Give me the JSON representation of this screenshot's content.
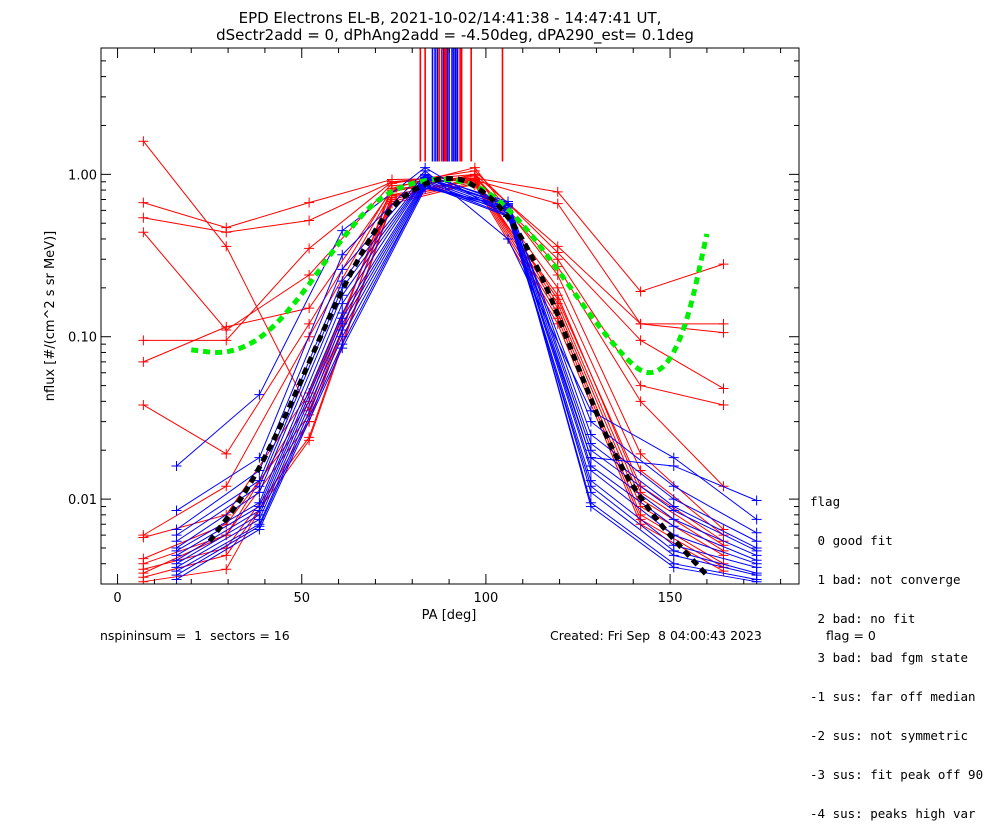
{
  "chart_data": {
    "type": "line",
    "title": "EPD Electrons EL-B, 2021-10-02/14:41:38 - 14:47:41 UT,",
    "subtitle": "dSectr2add = 0, dPhAng2add = -4.50deg, dPA290_est=   0.1deg",
    "xlabel": "PA [deg]",
    "ylabel": "nflux [#/(cm^2 s sr MeV)]",
    "xlim": [
      -4.5,
      185
    ],
    "ylim": [
      0.003,
      6.0
    ],
    "yscale": "log",
    "xticks": [
      0,
      50,
      100,
      150
    ],
    "xtick_labels": [
      "0",
      "50",
      "100",
      "150"
    ],
    "xminor_step": 10,
    "yticks": [
      0.01,
      0.1,
      1.0
    ],
    "ytick_labels": [
      "0.01",
      "0.10",
      "1.00"
    ],
    "grid": false,
    "red_pa": [
      7,
      29.5,
      52,
      74.5,
      97,
      119.5,
      142,
      164.5
    ],
    "blue_pa": [
      16,
      38.5,
      61,
      83.5,
      106,
      128.5,
      151,
      173.5
    ],
    "series": [
      {
        "name": "red-1",
        "color": "#ff0000",
        "pa": "red",
        "values": [
          1.6,
          0.36,
          0.035,
          0.85,
          0.95,
          0.3,
          0.05,
          0.038
        ]
      },
      {
        "name": "red-2",
        "color": "#ff0000",
        "pa": "red",
        "values": [
          0.67,
          0.47,
          0.67,
          0.93,
          0.95,
          0.78,
          0.19,
          0.28
        ]
      },
      {
        "name": "red-3",
        "color": "#ff0000",
        "pa": "red",
        "values": [
          0.54,
          0.44,
          0.52,
          0.9,
          0.92,
          0.66,
          0.12,
          0.12
        ]
      },
      {
        "name": "red-4",
        "color": "#ff0000",
        "pa": "red",
        "values": [
          0.44,
          0.11,
          0.24,
          0.88,
          1.05,
          0.33,
          0.095,
          0.048
        ]
      },
      {
        "name": "red-5",
        "color": "#ff0000",
        "pa": "red",
        "values": [
          0.095,
          0.095,
          0.35,
          0.9,
          1.0,
          0.36,
          0.12,
          0.106
        ]
      },
      {
        "name": "red-6",
        "color": "#ff0000",
        "pa": "red",
        "values": [
          0.07,
          0.115,
          0.15,
          0.8,
          0.98,
          0.27,
          0.04,
          0.012
        ]
      },
      {
        "name": "red-7",
        "color": "#ff0000",
        "pa": "red",
        "values": [
          0.038,
          0.019,
          0.12,
          0.82,
          1.1,
          0.24,
          0.019,
          0.0065
        ]
      },
      {
        "name": "red-8",
        "color": "#ff0000",
        "pa": "red",
        "values": [
          0.006,
          0.012,
          0.1,
          0.78,
          1.0,
          0.2,
          0.015,
          0.006
        ]
      },
      {
        "name": "red-9",
        "color": "#ff0000",
        "pa": "red",
        "values": [
          0.0058,
          0.008,
          0.045,
          0.72,
          0.95,
          0.17,
          0.012,
          0.0055
        ]
      },
      {
        "name": "red-10",
        "color": "#ff0000",
        "pa": "red",
        "values": [
          0.0043,
          0.007,
          0.033,
          0.7,
          0.93,
          0.16,
          0.01,
          0.0048
        ]
      },
      {
        "name": "red-11",
        "color": "#ff0000",
        "pa": "red",
        "values": [
          0.004,
          0.006,
          0.03,
          0.75,
          0.92,
          0.15,
          0.009,
          0.0045
        ]
      },
      {
        "name": "red-12",
        "color": "#ff0000",
        "pa": "red",
        "values": [
          0.0037,
          0.005,
          0.024,
          0.68,
          0.9,
          0.14,
          0.008,
          0.004
        ]
      },
      {
        "name": "red-13",
        "color": "#ff0000",
        "pa": "red",
        "values": [
          0.0033,
          0.0045,
          0.023,
          0.66,
          0.88,
          0.13,
          0.0075,
          0.0038
        ]
      },
      {
        "name": "red-14",
        "color": "#ff0000",
        "pa": "red",
        "values": [
          0.0031,
          0.0037,
          0.03,
          0.74,
          0.86,
          0.12,
          0.007,
          0.0036
        ]
      },
      {
        "name": "red-15",
        "color": "#ff0000",
        "pa": "red",
        "values": [
          0.0035,
          0.006,
          0.04,
          0.8,
          0.9,
          0.18,
          0.011,
          0.0052
        ]
      },
      {
        "name": "blue-1",
        "color": "#0000ff",
        "pa": "blue",
        "values": [
          0.016,
          0.044,
          0.45,
          1.1,
          0.55,
          0.018,
          0.016,
          0.0098
        ]
      },
      {
        "name": "blue-2",
        "color": "#0000ff",
        "pa": "blue",
        "values": [
          0.0085,
          0.018,
          0.32,
          1.05,
          0.4,
          0.035,
          0.018,
          0.0075
        ]
      },
      {
        "name": "blue-3",
        "color": "#0000ff",
        "pa": "blue",
        "values": [
          0.0065,
          0.015,
          0.26,
          1.0,
          0.66,
          0.03,
          0.012,
          0.0062
        ]
      },
      {
        "name": "blue-4",
        "color": "#0000ff",
        "pa": "blue",
        "values": [
          0.006,
          0.013,
          0.22,
          0.98,
          0.68,
          0.025,
          0.01,
          0.0055
        ]
      },
      {
        "name": "blue-5",
        "color": "#0000ff",
        "pa": "blue",
        "values": [
          0.0055,
          0.012,
          0.2,
          0.96,
          0.65,
          0.022,
          0.009,
          0.005
        ]
      },
      {
        "name": "blue-6",
        "color": "#0000ff",
        "pa": "blue",
        "values": [
          0.005,
          0.011,
          0.18,
          0.95,
          0.64,
          0.02,
          0.0085,
          0.0048
        ]
      },
      {
        "name": "blue-7",
        "color": "#0000ff",
        "pa": "blue",
        "values": [
          0.0048,
          0.0095,
          0.16,
          0.94,
          0.62,
          0.018,
          0.0075,
          0.0045
        ]
      },
      {
        "name": "blue-8",
        "color": "#0000ff",
        "pa": "blue",
        "values": [
          0.0045,
          0.009,
          0.14,
          0.92,
          0.6,
          0.016,
          0.0068,
          0.0042
        ]
      },
      {
        "name": "blue-9",
        "color": "#0000ff",
        "pa": "blue",
        "values": [
          0.0042,
          0.0085,
          0.13,
          0.9,
          0.58,
          0.015,
          0.006,
          0.004
        ]
      },
      {
        "name": "blue-10",
        "color": "#0000ff",
        "pa": "blue",
        "values": [
          0.004,
          0.008,
          0.12,
          0.88,
          0.56,
          0.013,
          0.0052,
          0.0038
        ]
      },
      {
        "name": "blue-11",
        "color": "#0000ff",
        "pa": "blue",
        "values": [
          0.0038,
          0.0075,
          0.11,
          0.86,
          0.55,
          0.012,
          0.0048,
          0.0035
        ]
      },
      {
        "name": "blue-12",
        "color": "#0000ff",
        "pa": "blue",
        "values": [
          0.0036,
          0.007,
          0.1,
          0.84,
          0.6,
          0.011,
          0.0045,
          0.0034
        ]
      },
      {
        "name": "blue-13",
        "color": "#0000ff",
        "pa": "blue",
        "values": [
          0.0034,
          0.0068,
          0.09,
          0.85,
          0.62,
          0.0095,
          0.004,
          0.0032
        ]
      },
      {
        "name": "blue-14",
        "color": "#0000ff",
        "pa": "blue",
        "values": [
          0.0032,
          0.0065,
          0.085,
          0.82,
          0.64,
          0.009,
          0.0038,
          0.0031
        ]
      }
    ],
    "fit_curves": [
      {
        "name": "green-dashed-fit",
        "color": "#00ee00",
        "pa": [
          20,
          30,
          40,
          50,
          60,
          70,
          80,
          90,
          100,
          110,
          120,
          130,
          140,
          145,
          150,
          155,
          160
        ],
        "values": [
          0.083,
          0.078,
          0.1,
          0.18,
          0.38,
          0.7,
          0.9,
          0.95,
          0.82,
          0.5,
          0.25,
          0.12,
          0.065,
          0.058,
          0.07,
          0.13,
          0.43
        ]
      },
      {
        "name": "black-dashed-fit",
        "color": "#000000",
        "pa": [
          25,
          35,
          45,
          55,
          65,
          75,
          85,
          90,
          95,
          105,
          115,
          125,
          135,
          145,
          155,
          160
        ],
        "values": [
          0.0055,
          0.011,
          0.03,
          0.1,
          0.3,
          0.68,
          0.92,
          0.95,
          0.92,
          0.62,
          0.25,
          0.065,
          0.018,
          0.008,
          0.0045,
          0.0034
        ]
      }
    ],
    "vertical_markers": [
      {
        "color": "#ff0000",
        "pa": [
          82.2,
          83.5,
          88.0,
          96.0,
          104.5
        ]
      },
      {
        "color": "#0000ff",
        "pa": [
          85.5,
          86.2,
          86.8,
          88.5,
          89.5,
          90.0,
          90.8,
          91.3,
          91.8,
          92.3
        ]
      },
      {
        "color": "#ff0000",
        "pa": [
          87.3,
          88.8,
          89.2,
          93.0,
          93.4
        ]
      }
    ],
    "vertical_marker_range": [
      1.2,
      6.0
    ],
    "legend": {
      "title": "flag",
      "entries": [
        " 0 good fit",
        " 1 bad: not converge",
        " 2 bad: no fit",
        " 3 bad: bad fgm state",
        "-1 sus: far off median",
        "-2 sus: not symmetric",
        "-3 sus: fit peak off 90",
        "-4 sus: peaks high var"
      ],
      "placement": "right-bottom-outside"
    }
  },
  "footer": {
    "left": "nspininsum =  1  sectors = 16",
    "right": "Created: Fri Sep  8 04:00:43 2023",
    "flag": "flag = 0"
  }
}
